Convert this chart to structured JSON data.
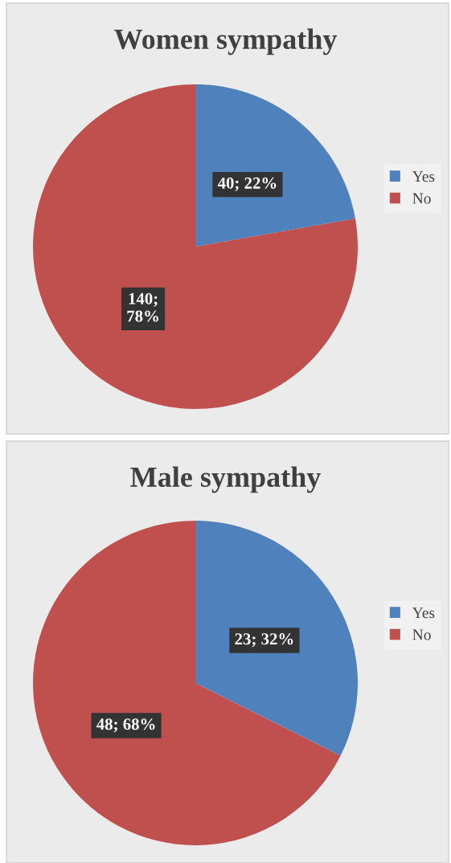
{
  "chart_data": [
    {
      "type": "pie",
      "title": "Women sympathy",
      "categories": [
        "Yes",
        "No"
      ],
      "values": [
        40,
        140
      ],
      "colors": [
        "#4f81bd",
        "#c0504d"
      ],
      "value_labels": [
        "40; 22%",
        "140;\n78%"
      ],
      "legend": "right"
    },
    {
      "type": "pie",
      "title": "Male sympathy",
      "categories": [
        "Yes",
        "No"
      ],
      "values": [
        23,
        48
      ],
      "colors": [
        "#4f81bd",
        "#c0504d"
      ],
      "value_labels": [
        "23; 32%",
        "48; 68%"
      ],
      "legend": "right"
    }
  ]
}
